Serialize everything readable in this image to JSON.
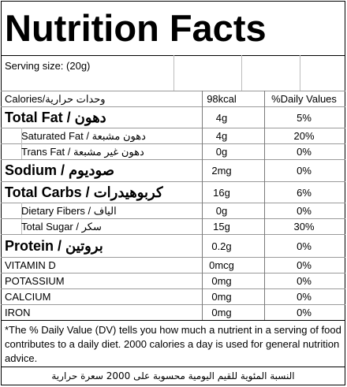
{
  "title": "Nutrition Facts",
  "serving": "Serving size:  (20g)",
  "header": {
    "name": "Calories/وحدات حرارية",
    "amount": "98kcal",
    "dv": "%Daily Values"
  },
  "rows": [
    {
      "name": "Total Fat / دهون",
      "amount": "4g",
      "dv": "5%"
    },
    {
      "name": "Saturated Fat / دهون مشبعة",
      "amount": "4g",
      "dv": "20%"
    },
    {
      "name": "Trans Fat / دهون غير مشبعة",
      "amount": "0g",
      "dv": "0%"
    },
    {
      "name": "Sodium / صوديوم",
      "amount": "2mg",
      "dv": "0%"
    },
    {
      "name": "Total Carbs / كربوهيدرات",
      "amount": "16g",
      "dv": "6%"
    },
    {
      "name": "Dietary Fibers / الياف",
      "amount": "0g",
      "dv": "0%"
    },
    {
      "name": "Total Sugar / سكر",
      "amount": "15g",
      "dv": "30%"
    },
    {
      "name": "Protein / بروتين",
      "amount": "0.2g",
      "dv": "0%"
    },
    {
      "name": "VITAMIN D",
      "amount": "0mcg",
      "dv": "0%"
    },
    {
      "name": "POTASSIUM",
      "amount": "0mg",
      "dv": "0%"
    },
    {
      "name": "CALCIUM",
      "amount": "0mg",
      "dv": "0%"
    },
    {
      "name": "IRON",
      "amount": "0mg",
      "dv": "0%"
    }
  ],
  "footnote": "*The % Daily Value (DV) tells you how much a nutrient in a serving of food contributes to a daily diet. 2000 calories a day is used for general nutrition advice.",
  "footnote_ar": "النسبة المئوية للقيم اليومية محسوبة على 2000 سعرة حرارية"
}
